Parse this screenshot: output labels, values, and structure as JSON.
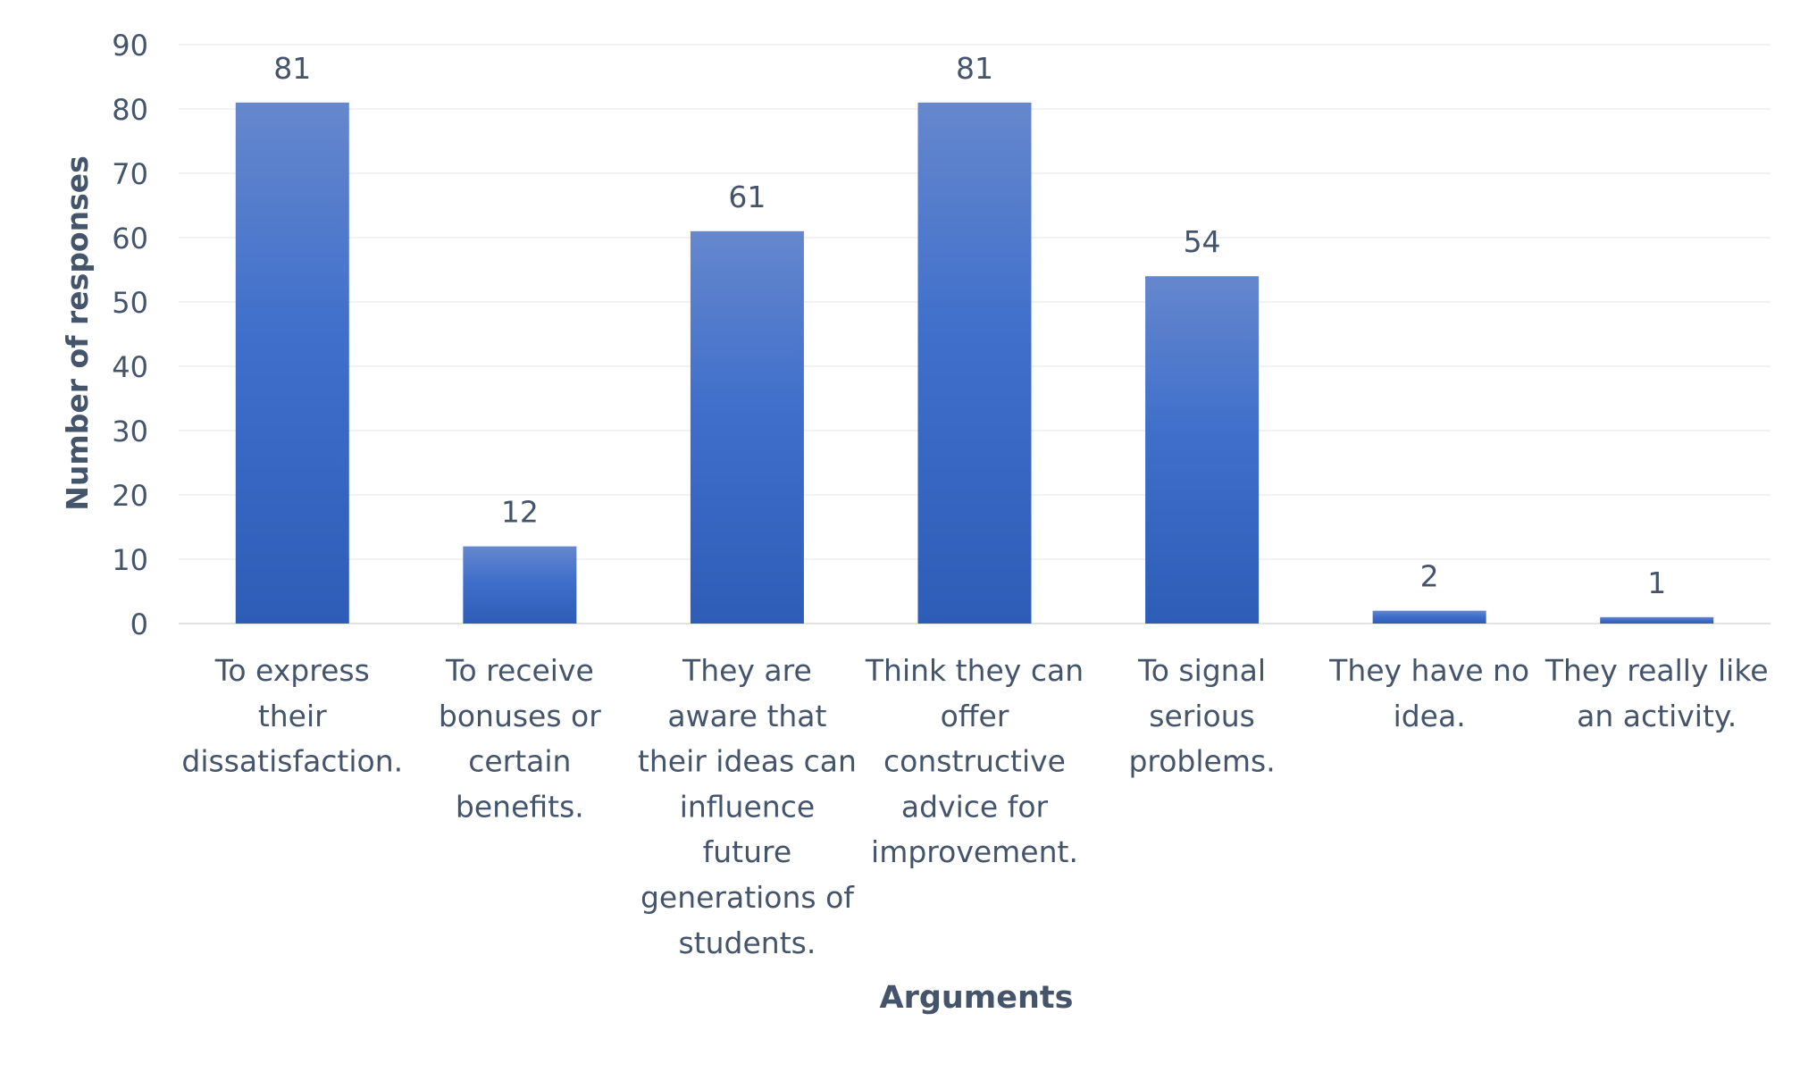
{
  "chart_data": {
    "type": "bar",
    "title": "",
    "xlabel": "Arguments",
    "ylabel": "Number of responses",
    "ylim": [
      0,
      90
    ],
    "yticks": [
      0,
      10,
      20,
      30,
      40,
      50,
      60,
      70,
      80,
      90
    ],
    "grid": true,
    "legend": "none",
    "categories": [
      [
        "To express",
        "their",
        "dissatisfaction."
      ],
      [
        "To receive",
        "bonuses or",
        "certain",
        "benefits."
      ],
      [
        "They are",
        "aware that",
        "their ideas can",
        "influence",
        "future",
        "generations of",
        "students."
      ],
      [
        "Think they can",
        "offer",
        "constructive",
        "advice for",
        "improvement."
      ],
      [
        "To signal",
        "serious",
        "problems."
      ],
      [
        "They have no",
        "idea."
      ],
      [
        "They really like",
        "an activity."
      ]
    ],
    "values": [
      81,
      12,
      61,
      81,
      54,
      2,
      1
    ],
    "colors": {
      "bar_top": "#6587CD",
      "bar_mid": "#3F6FCB",
      "bar_bottom": "#2E5DB8",
      "text": "#44546A",
      "grid": "#E6E6E6",
      "axis": "#D9D9D9"
    }
  }
}
